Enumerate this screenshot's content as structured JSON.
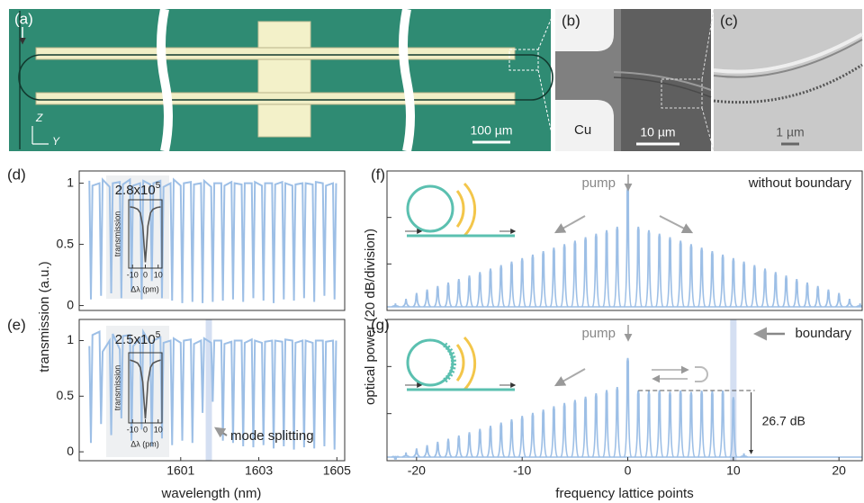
{
  "images": {
    "a": {
      "label": "(a)",
      "scale": "100 µm",
      "axis_z": "Z",
      "axis_y": "Y"
    },
    "b": {
      "label": "(b)",
      "material": "Cu",
      "scale": "10 µm"
    },
    "c": {
      "label": "(c)",
      "scale": "1 µm"
    }
  },
  "chart_data": [
    {
      "type": "line",
      "panel_label": "(d)",
      "ylabel": "transmission (a.u.)",
      "color": "#9dbfe6",
      "xlim": [
        1598.4,
        1605.2
      ],
      "ylim": [
        -0.04,
        1.1
      ],
      "yticks": [
        0,
        0.5,
        1
      ],
      "x": [
        1598.66,
        1598.7,
        1598.74,
        1598.92,
        1598.96,
        1599.0,
        1599.18,
        1599.22,
        1599.26,
        1599.44,
        1599.48,
        1599.52,
        1599.7,
        1599.74,
        1599.78,
        1599.96,
        1600.0,
        1600.04,
        1600.22,
        1600.26,
        1600.3,
        1600.48,
        1600.52,
        1600.56,
        1600.74,
        1600.78,
        1600.82,
        1601.0,
        1601.04,
        1601.08,
        1601.26,
        1601.3,
        1601.34,
        1601.52,
        1601.56,
        1601.6,
        1601.78,
        1601.82,
        1601.86,
        1602.04,
        1602.08,
        1602.12,
        1602.3,
        1602.34,
        1602.38,
        1602.56,
        1602.6,
        1602.64,
        1602.82,
        1602.86,
        1602.9,
        1603.08,
        1603.12,
        1603.16,
        1603.34,
        1603.38,
        1603.42,
        1603.6,
        1603.64,
        1603.68,
        1603.86,
        1603.9,
        1603.94,
        1604.12,
        1604.16,
        1604.2,
        1604.38,
        1604.42,
        1604.46,
        1604.64,
        1604.68,
        1604.72,
        1604.9,
        1604.94,
        1604.98
      ],
      "values": [
        1.02,
        0.05,
        0.98,
        1.0,
        0.08,
        1.03,
        0.97,
        0.1,
        1.0,
        1.01,
        0.06,
        0.99,
        1.03,
        0.12,
        0.98,
        1.0,
        0.05,
        1.02,
        0.99,
        0.2,
        1.0,
        1.02,
        0.06,
        0.97,
        1.0,
        0.04,
        1.03,
        0.98,
        0.02,
        1.0,
        1.01,
        0.03,
        0.99,
        1.0,
        0.02,
        1.02,
        0.97,
        0.03,
        1.0,
        1.0,
        0.04,
        0.98,
        1.01,
        0.05,
        1.0,
        0.99,
        0.03,
        1.0,
        1.0,
        0.06,
        1.01,
        0.98,
        0.04,
        1.0,
        1.0,
        0.02,
        0.99,
        1.01,
        0.05,
        1.0,
        0.98,
        0.04,
        0.99,
        1.0,
        0.06,
        1.0,
        0.99,
        0.03,
        1.01,
        1.0,
        0.08,
        0.98,
        1.0,
        0.05,
        1.0
      ]
    },
    {
      "type": "line",
      "panel_label": "(e)",
      "xlabel": "wavelength (nm)",
      "annotation": "mode splitting",
      "color": "#9dbfe6",
      "xlim": [
        1598.4,
        1605.2
      ],
      "ylim": [
        -0.08,
        1.19
      ],
      "yticks": [
        0,
        0.5,
        1
      ],
      "xticks": [
        1601,
        1603,
        1605
      ],
      "highlight": [
        1601.64,
        1601.8
      ],
      "x": [
        1598.66,
        1598.7,
        1598.74,
        1598.92,
        1598.96,
        1599.0,
        1599.18,
        1599.22,
        1599.26,
        1599.44,
        1599.48,
        1599.52,
        1599.7,
        1599.74,
        1599.78,
        1599.96,
        1600.0,
        1600.04,
        1600.22,
        1600.26,
        1600.3,
        1600.48,
        1600.52,
        1600.56,
        1600.74,
        1600.78,
        1600.82,
        1601.0,
        1601.04,
        1601.08,
        1601.26,
        1601.3,
        1601.34,
        1601.52,
        1601.56,
        1601.6,
        1601.78,
        1601.82,
        1601.86,
        1602.04,
        1602.08,
        1602.12,
        1602.3,
        1602.34,
        1602.38,
        1602.56,
        1602.6,
        1602.64,
        1602.82,
        1602.86,
        1602.9,
        1603.08,
        1603.12,
        1603.16,
        1603.34,
        1603.38,
        1603.42,
        1603.6,
        1603.64,
        1603.68,
        1603.86,
        1603.9,
        1603.94,
        1604.12,
        1604.16,
        1604.2,
        1604.38,
        1604.42,
        1604.46,
        1604.64,
        1604.68,
        1604.72,
        1604.9,
        1604.94,
        1604.98
      ],
      "values": [
        0.95,
        0.08,
        1.05,
        1.08,
        0.25,
        0.9,
        1.0,
        0.15,
        1.06,
        0.92,
        0.3,
        1.04,
        1.05,
        0.1,
        0.95,
        1.02,
        0.2,
        1.08,
        0.97,
        0.05,
        1.0,
        1.03,
        0.12,
        0.98,
        1.0,
        0.06,
        1.02,
        0.98,
        0.1,
        1.0,
        1.01,
        0.08,
        0.97,
        1.0,
        0.35,
        1.02,
        0.98,
        0.45,
        1.0,
        1.0,
        0.1,
        0.97,
        0.99,
        0.08,
        1.0,
        1.0,
        0.05,
        0.98,
        1.01,
        0.04,
        1.0,
        0.98,
        0.06,
        0.99,
        1.0,
        0.03,
        1.0,
        0.99,
        0.05,
        1.01,
        1.0,
        0.02,
        0.98,
        1.0,
        0.04,
        1.0,
        0.98,
        0.03,
        1.0,
        1.0,
        0.05,
        0.99,
        1.0,
        0.02,
        1.0
      ]
    },
    {
      "type": "stem",
      "panel_label": "(f)",
      "ylabel": "optical power (20 dB/division)",
      "pump": "pump",
      "note": "without boundary",
      "color": "#9dbfe6",
      "xlim": [
        -22.8,
        22.2
      ],
      "ylim": [
        0,
        60
      ],
      "yticks": [
        0,
        20,
        40,
        60
      ],
      "ytick_labels": false,
      "x": [
        -22,
        -21,
        -20,
        -19,
        -18,
        -17,
        -16,
        -15,
        -14,
        -13,
        -12,
        -11,
        -10,
        -9,
        -8,
        -7,
        -6,
        -5,
        -4,
        -3,
        -2,
        -1,
        0,
        1,
        2,
        3,
        4,
        5,
        6,
        7,
        8,
        9,
        10,
        11,
        12,
        13,
        14,
        15,
        16,
        17,
        18,
        19,
        20,
        21,
        22
      ],
      "values": [
        3,
        5,
        7.5,
        9,
        10.5,
        12,
        13.5,
        15,
        16.5,
        18,
        19.5,
        21,
        22.5,
        24,
        25.5,
        27,
        28.5,
        30,
        31.5,
        33,
        34.5,
        36,
        53,
        36,
        34.5,
        33,
        31.5,
        30,
        28.5,
        27,
        25.5,
        24,
        22.5,
        21,
        19.5,
        18,
        16.5,
        15,
        13.5,
        12,
        10.5,
        9,
        7.5,
        5,
        3
      ]
    },
    {
      "type": "stem",
      "panel_label": "(g)",
      "xlabel": "frequency lattice points",
      "pump": "pump",
      "note": "boundary",
      "drop": "26.7 dB",
      "color": "#9dbfe6",
      "xlim": [
        -22.8,
        22.2
      ],
      "ylim": [
        0,
        60
      ],
      "yticks": [
        0,
        20,
        40,
        60
      ],
      "ytick_labels": false,
      "xticks": [
        -20,
        -10,
        0,
        10,
        20
      ],
      "highlight": [
        9.7,
        10.3
      ],
      "x": [
        -22,
        -21,
        -20,
        -19,
        -18,
        -17,
        -16,
        -15,
        -14,
        -13,
        -12,
        -11,
        -10,
        -9,
        -8,
        -7,
        -6,
        -5,
        -4,
        -3,
        -2,
        -1,
        0,
        1,
        2,
        3,
        4,
        5,
        6,
        7,
        8,
        9,
        10,
        11
      ],
      "values": [
        2,
        3.5,
        5.2,
        6.6,
        8,
        9.3,
        10.7,
        12.1,
        13.5,
        14.8,
        16.2,
        17.6,
        19,
        20.3,
        21.7,
        23.1,
        24.5,
        25.8,
        27.2,
        28.6,
        30,
        31.3,
        43.6,
        29.8,
        29.5,
        29.9,
        29.3,
        29.8,
        29.2,
        29.7,
        29.5,
        29.8,
        27,
        3.1
      ]
    },
    {
      "type": "line",
      "q_label": "2.8x10",
      "q_exponent": "5",
      "ylabel": "transmission",
      "xlabel": "Δλ (pm)",
      "color": "#555555",
      "xlim": [
        -13,
        13
      ],
      "ylim": [
        -0.05,
        1.1
      ],
      "xticks": [
        -10,
        0,
        10
      ],
      "x": [
        -12,
        -9,
        -6,
        -4,
        -2,
        -1,
        0,
        1,
        2,
        4,
        6,
        9,
        12
      ],
      "values": [
        0.98,
        0.97,
        0.94,
        0.88,
        0.66,
        0.34,
        0.05,
        0.34,
        0.66,
        0.88,
        0.94,
        0.97,
        0.98
      ]
    },
    {
      "type": "line",
      "q_label": "2.5x10",
      "q_exponent": "5",
      "ylabel": "transmission",
      "xlabel": "Δλ (pm)",
      "color": "#555555",
      "xlim": [
        -13,
        13
      ],
      "ylim": [
        -0.05,
        1.1
      ],
      "xticks": [
        -10,
        0,
        10
      ],
      "x": [
        -12,
        -9,
        -6,
        -4,
        -2,
        -1,
        0,
        1,
        2,
        4,
        6,
        9,
        12
      ],
      "values": [
        0.98,
        0.96,
        0.93,
        0.86,
        0.62,
        0.3,
        0.02,
        0.3,
        0.62,
        0.86,
        0.93,
        0.96,
        0.98
      ]
    }
  ]
}
